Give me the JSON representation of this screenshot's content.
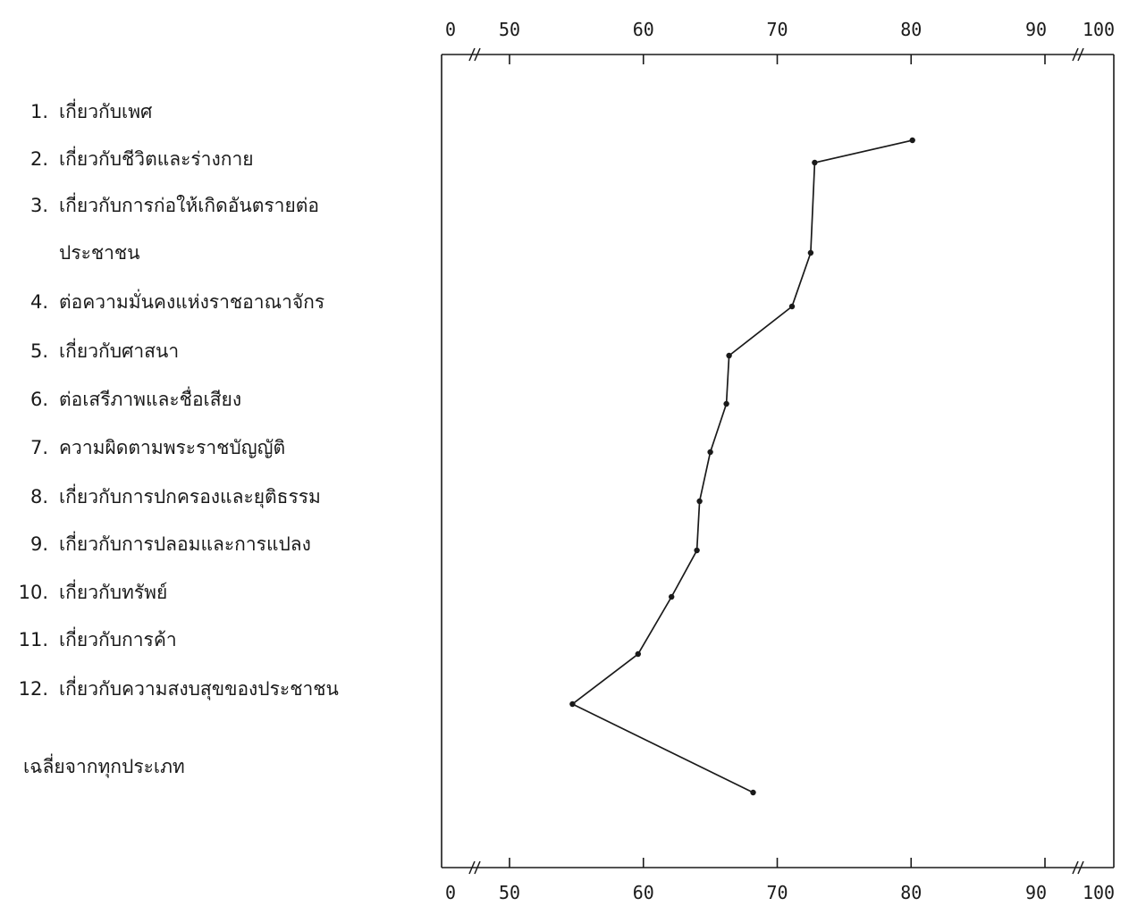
{
  "chart_data": {
    "type": "line",
    "orientation": "horizontal",
    "categories": [
      "1. เกี่ยวกับเพศ",
      "2. เกี่ยวกับชีวิตและร่างกาย",
      "3. เกี่ยวกับการก่อให้เกิดอันตรายต่อประชาชน",
      "4. ต่อความมั่นคงแห่งราชอาณาจักร",
      "5. เกี่ยวกับศาสนา",
      "6. ต่อเสรีภาพและชื่อเสียง",
      "7. ความผิดตามพระราชบัญญัติ",
      "8. เกี่ยวกับการปกครองและยุติธรรม",
      "9. เกี่ยวกับการปลอมและการแปลง",
      "10. เกี่ยวกับทรัพย์",
      "11. เกี่ยวกับการค้า",
      "12. เกี่ยวกับความสงบสุขของประชาชน",
      "เฉลี่ยจากทุกประเภท"
    ],
    "labels": [
      {
        "num": "1.",
        "text": "เกี่ยวกับเพศ"
      },
      {
        "num": "2.",
        "text": "เกี่ยวกับชีวิตและร่างกาย"
      },
      {
        "num": "3.",
        "text": "เกี่ยวกับการก่อให้เกิดอันตรายต่อ",
        "text2": "ประชาชน"
      },
      {
        "num": "4.",
        "text": "ต่อความมั่นคงแห่งราชอาณาจักร"
      },
      {
        "num": "5.",
        "text": "เกี่ยวกับศาสนา"
      },
      {
        "num": "6.",
        "text": "ต่อเสรีภาพและชื่อเสียง"
      },
      {
        "num": "7.",
        "text": "ความผิดตามพระราชบัญญัติ"
      },
      {
        "num": "8.",
        "text": "เกี่ยวกับการปกครองและยุติธรรม"
      },
      {
        "num": "9.",
        "text": "เกี่ยวกับการปลอมและการแปลง"
      },
      {
        "num": "10.",
        "text": "เกี่ยวกับทรัพย์"
      },
      {
        "num": "11.",
        "text": "เกี่ยวกับการค้า"
      },
      {
        "num": "12.",
        "text": "เกี่ยวกับความสงบสุขของประชาชน"
      },
      {
        "num": "",
        "text": "เฉลี่ยจากทุกประเภท"
      }
    ],
    "values": [
      80.1,
      72.8,
      72.5,
      71.1,
      66.4,
      66.2,
      65.0,
      64.2,
      64.0,
      62.1,
      59.6,
      54.7,
      68.2
    ],
    "x_ticks": [
      "0",
      "50",
      "60",
      "70",
      "80",
      "90",
      "100"
    ],
    "xlim": [
      0,
      100
    ],
    "axis_break": "0–50 and 90–100 compressed",
    "title": "",
    "xlabel": "",
    "ylabel": "",
    "grid": false,
    "legend": "none"
  }
}
